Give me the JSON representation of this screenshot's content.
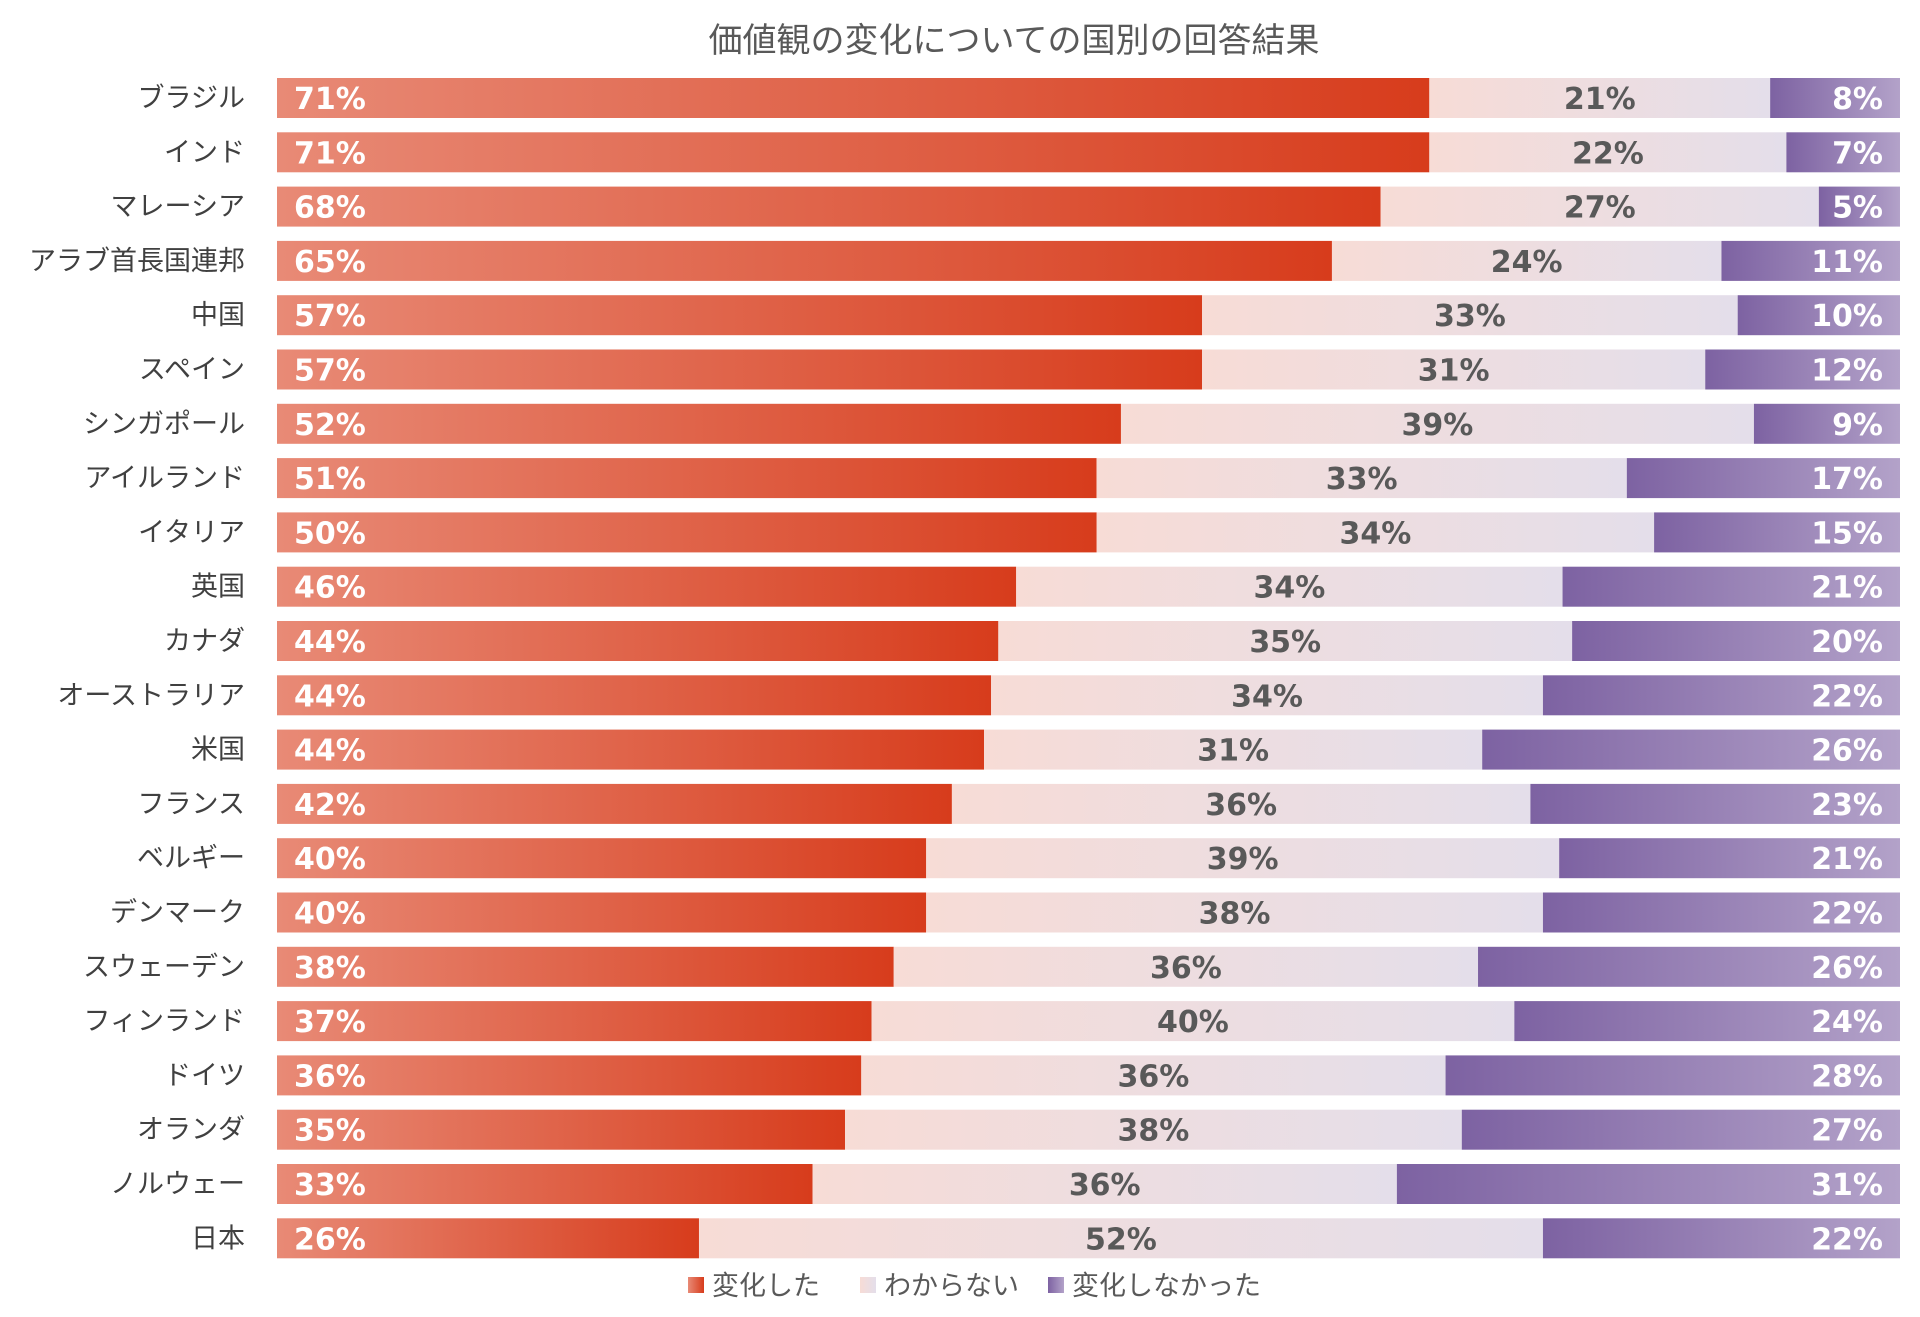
{
  "chart_data": {
    "type": "bar",
    "orientation": "horizontal",
    "stacked": "100%",
    "title": "価値観の変化についての国別の回答結果",
    "categories": [
      "ブラジル",
      "インド",
      "マレーシア",
      "アラブ首長国連邦",
      "中国",
      "スペイン",
      "シンガポール",
      "アイルランド",
      "イタリア",
      "英国",
      "カナダ",
      "オーストラリア",
      "米国",
      "フランス",
      "ベルギー",
      "デンマーク",
      "スウェーデン",
      "フィンランド",
      "ドイツ",
      "オランダ",
      "ノルウェー",
      "日本"
    ],
    "series": [
      {
        "name": "変化した",
        "color": "#d9411f",
        "values": [
          71,
          71,
          68,
          65,
          57,
          57,
          52,
          51,
          50,
          46,
          44,
          44,
          44,
          42,
          40,
          40,
          38,
          37,
          36,
          35,
          33,
          26
        ]
      },
      {
        "name": "わからない",
        "color": "#f4ddd8",
        "values": [
          21,
          22,
          27,
          24,
          33,
          31,
          39,
          33,
          34,
          34,
          35,
          34,
          31,
          36,
          39,
          38,
          36,
          40,
          36,
          38,
          36,
          52
        ]
      },
      {
        "name": "変化しなかった",
        "color": "#7e62a3",
        "values": [
          8,
          7,
          5,
          11,
          10,
          12,
          9,
          17,
          15,
          21,
          20,
          22,
          26,
          23,
          21,
          22,
          26,
          24,
          28,
          27,
          31,
          22
        ]
      }
    ],
    "value_suffix": "%",
    "legend_position": "bottom",
    "grid": false
  }
}
